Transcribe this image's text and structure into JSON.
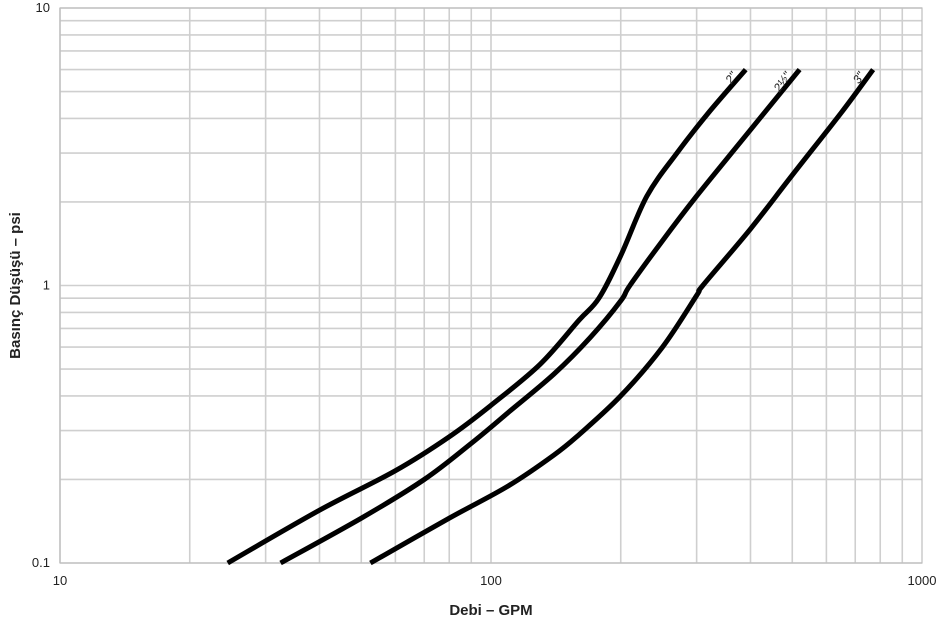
{
  "chart_data": {
    "type": "line",
    "title": "",
    "xlabel": "Debi – GPM",
    "ylabel": "Basınç Düşüşü – psi",
    "xscale": "log",
    "yscale": "log",
    "xlim": [
      10,
      1000
    ],
    "ylim": [
      0.1,
      10
    ],
    "grid": true,
    "x_tick_labels": [
      "10",
      "100",
      "1000"
    ],
    "y_tick_labels": [
      "0.1",
      "1",
      "10"
    ],
    "series": [
      {
        "name": "2\"",
        "x": [
          24.5,
          40,
          60,
          80,
          100,
          130,
          160,
          178,
          200,
          230,
          270,
          320,
          390
        ],
        "y": [
          0.1,
          0.155,
          0.215,
          0.285,
          0.37,
          0.52,
          0.75,
          0.9,
          1.28,
          2.1,
          3.0,
          4.2,
          6.0
        ]
      },
      {
        "name": "2½\"",
        "x": [
          32.5,
          50,
          70,
          90,
          110,
          140,
          170,
          200,
          210,
          250,
          300,
          380,
          520
        ],
        "y": [
          0.1,
          0.145,
          0.2,
          0.27,
          0.35,
          0.48,
          0.65,
          0.88,
          1.0,
          1.45,
          2.1,
          3.3,
          6.0
        ]
      },
      {
        "name": "3\"",
        "x": [
          52.5,
          80,
          110,
          140,
          160,
          200,
          250,
          300,
          310,
          400,
          500,
          650,
          770
        ],
        "y": [
          0.1,
          0.145,
          0.19,
          0.245,
          0.29,
          0.4,
          0.6,
          0.92,
          1.0,
          1.6,
          2.5,
          4.2,
          6.0
        ]
      }
    ]
  }
}
